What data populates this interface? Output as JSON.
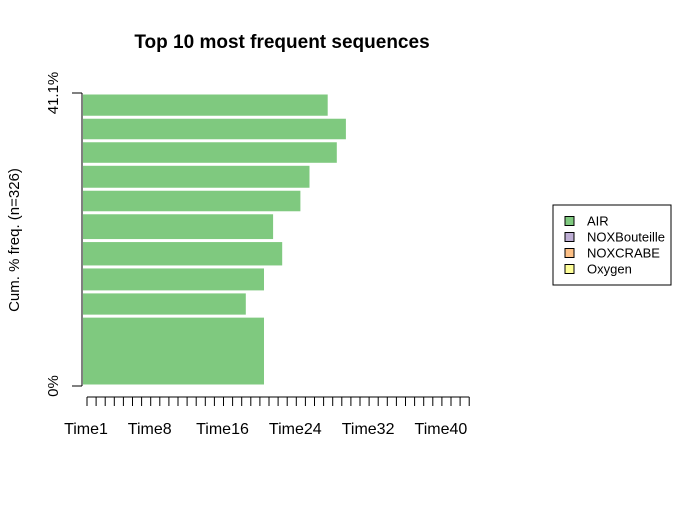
{
  "chart_data": {
    "type": "bar",
    "orientation": "horizontal",
    "stacked": true,
    "title": "Top 10 most frequent sequences",
    "ylabel": "Cum. % freq. (n=326)",
    "y_tick_labels": [
      "0%",
      "41.1%"
    ],
    "x_tick_labels": [
      "Time1",
      "Time8",
      "Time16",
      "Time24",
      "Time32",
      "Time40"
    ],
    "x_tick_positions": [
      1,
      8,
      16,
      24,
      32,
      40
    ],
    "x_range": [
      1,
      43
    ],
    "y_range_percent": [
      0,
      41.1
    ],
    "bar_color": "#7FC97F",
    "sequences": [
      {
        "rank": 1,
        "length_time": 27,
        "cum_freq_top": 41.1
      },
      {
        "rank": 2,
        "length_time": 29,
        "cum_freq_top": 37.7
      },
      {
        "rank": 3,
        "length_time": 28,
        "cum_freq_top": 34.4
      },
      {
        "rank": 4,
        "length_time": 25,
        "cum_freq_top": 31.1
      },
      {
        "rank": 5,
        "length_time": 24,
        "cum_freq_top": 27.6
      },
      {
        "rank": 6,
        "length_time": 21,
        "cum_freq_top": 24.3
      },
      {
        "rank": 7,
        "length_time": 22,
        "cum_freq_top": 20.4
      },
      {
        "rank": 8,
        "length_time": 20,
        "cum_freq_top": 16.7
      },
      {
        "rank": 9,
        "length_time": 18,
        "cum_freq_top": 13.2
      },
      {
        "rank": 10,
        "length_time": 20,
        "cum_freq_top": 9.8
      }
    ],
    "legend": {
      "placement": "right",
      "entries": [
        {
          "label": "AIR",
          "color": "#7FC97F"
        },
        {
          "label": "NOXBouteille",
          "color": "#BEAED4"
        },
        {
          "label": "NOXCRABE",
          "color": "#FDC086"
        },
        {
          "label": "Oxygen",
          "color": "#FFFF99"
        }
      ]
    }
  }
}
